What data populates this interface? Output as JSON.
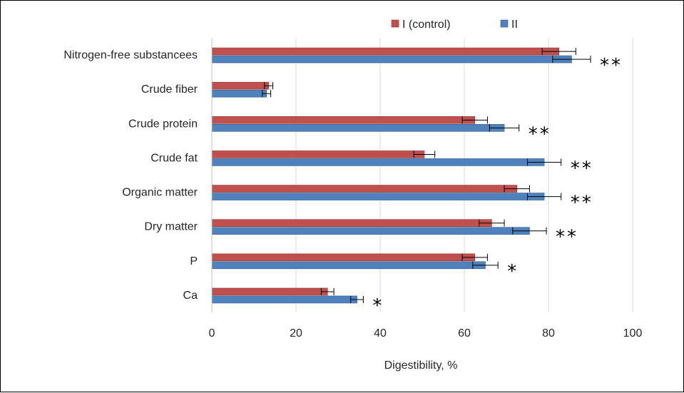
{
  "chart_data": {
    "type": "bar",
    "orientation": "horizontal",
    "categories": [
      "Nitrogen-free substancees",
      "Crude fiber",
      "Crude protein",
      "Crude fat",
      "Organic matter",
      "Dry matter",
      "P",
      "Ca"
    ],
    "series": [
      {
        "name": "I (control)",
        "color": "#C0504D",
        "values": [
          82.5,
          13.5,
          62.5,
          50.5,
          72.5,
          66.5,
          62.5,
          27.5
        ],
        "errors": [
          4.0,
          1.0,
          3.0,
          2.5,
          3.0,
          3.0,
          3.0,
          1.5
        ]
      },
      {
        "name": "II",
        "color": "#4F81BD",
        "values": [
          85.5,
          13.0,
          69.5,
          79.0,
          79.0,
          75.5,
          65.0,
          34.5
        ],
        "errors": [
          4.5,
          1.0,
          3.5,
          4.0,
          4.0,
          4.0,
          3.0,
          1.5
        ]
      }
    ],
    "significance": [
      "**",
      "",
      "**",
      "**",
      "**",
      "**",
      "*",
      "*"
    ],
    "xlabel": "Digestibility, %",
    "ylabel": "",
    "xlim": [
      0,
      100
    ],
    "xticks": [
      "0",
      "20",
      "40",
      "60",
      "80",
      "100"
    ],
    "grid": "vertical",
    "legend": "top"
  }
}
